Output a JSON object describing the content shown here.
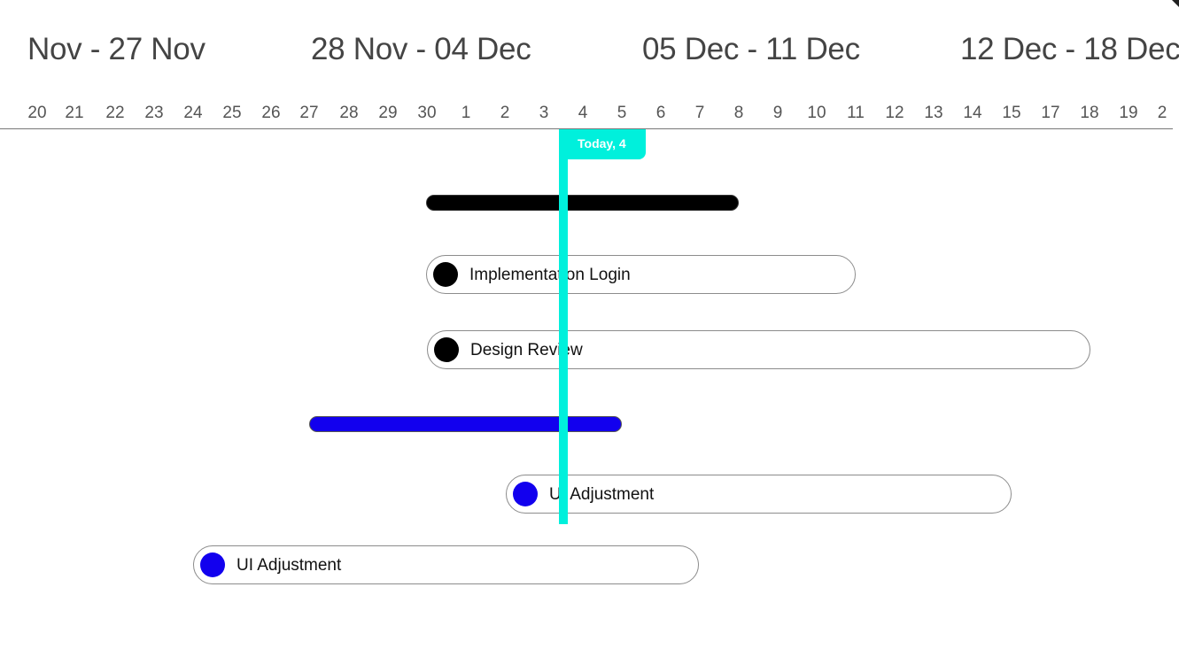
{
  "weeks": [
    "Nov - 27 Nov",
    "28 Nov - 04 Dec",
    "05 Dec - 11 Dec",
    "12 Dec - 18 Dec"
  ],
  "days": [
    "20",
    "21",
    "22",
    "23",
    "24",
    "25",
    "26",
    "27",
    "28",
    "29",
    "30",
    "1",
    "2",
    "3",
    "4",
    "5",
    "6",
    "7",
    "8",
    "9",
    "10",
    "11",
    "12",
    "13",
    "14",
    "15",
    "17",
    "18",
    "19",
    "2"
  ],
  "today": {
    "label": "Today, 4",
    "color": "#00f0dc"
  },
  "summary_bars": [
    {
      "color": "#000000"
    },
    {
      "color": "#1200ee"
    }
  ],
  "tasks": [
    {
      "label": "Implementation Login",
      "dot_color": "#000000"
    },
    {
      "label": "Design Review",
      "dot_color": "#000000"
    },
    {
      "label": "UI Adjustment",
      "dot_color": "#1200ee"
    },
    {
      "label": "UI Adjustment",
      "dot_color": "#1200ee"
    }
  ]
}
